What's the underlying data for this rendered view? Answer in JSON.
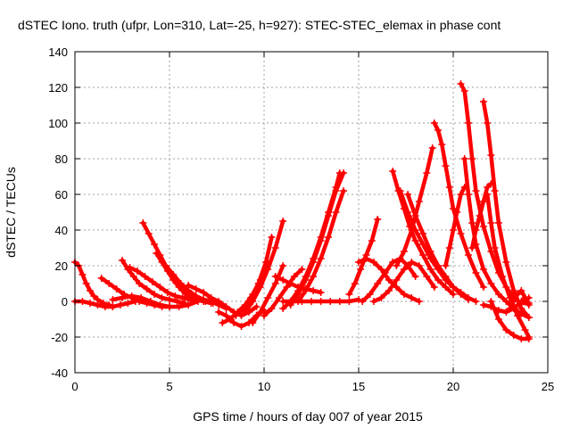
{
  "chart_data": {
    "type": "scatter",
    "title": "dSTEC Iono. truth (ufpr, Lon=310, Lat=-25, h=927): STEC-STEC_elemax in phase cont",
    "xlabel": "GPS time / hours of day 007 of year 2015",
    "ylabel": "dSTEC  / TECUs",
    "xlim": [
      0,
      25
    ],
    "ylim": [
      -40,
      140
    ],
    "xticks": [
      0,
      5,
      10,
      15,
      20,
      25
    ],
    "yticks": [
      -40,
      -20,
      0,
      20,
      40,
      60,
      80,
      100,
      120,
      140
    ],
    "grid": true,
    "marker": "+",
    "color": "#ff0000",
    "series": [
      {
        "x": [
          0.0,
          0.2,
          0.4,
          0.6,
          0.8,
          1.0,
          1.2,
          1.5,
          1.8,
          2.0
        ],
        "y": [
          22,
          20,
          15,
          10,
          6,
          3,
          1,
          -1,
          -2,
          -3
        ]
      },
      {
        "x": [
          0.0,
          0.4,
          0.8,
          1.2,
          1.6,
          2.0,
          2.4,
          2.8,
          3.2
        ],
        "y": [
          0,
          0,
          -1,
          -2,
          -3,
          -3,
          -2,
          -1,
          0
        ]
      },
      {
        "x": [
          1.4,
          1.8,
          2.2,
          2.6,
          3.0,
          3.4,
          3.8,
          4.2,
          4.6,
          5.0
        ],
        "y": [
          13,
          10,
          7,
          4,
          2,
          0,
          -1,
          -2,
          -3,
          -3
        ]
      },
      {
        "x": [
          2.5,
          2.8,
          3.1,
          3.4,
          3.8,
          4.2,
          4.6,
          5.0,
          5.4,
          5.8
        ],
        "y": [
          23,
          18,
          14,
          10,
          7,
          4,
          2,
          1,
          0,
          -1
        ]
      },
      {
        "x": [
          2.9,
          3.3,
          3.7,
          4.1,
          4.5,
          4.9,
          5.3,
          5.7,
          6.1,
          6.5
        ],
        "y": [
          19,
          17,
          14,
          11,
          8,
          5,
          3,
          2,
          1,
          0
        ]
      },
      {
        "x": [
          3.6,
          3.9,
          4.2,
          4.5,
          4.8,
          5.1,
          5.4,
          5.7,
          6.0,
          6.4,
          6.8,
          7.2
        ],
        "y": [
          44,
          38,
          32,
          26,
          20,
          15,
          10,
          6,
          3,
          1,
          0,
          -1
        ]
      },
      {
        "x": [
          4.3,
          4.6,
          4.9,
          5.2,
          5.5,
          5.8,
          6.1,
          6.5,
          6.9,
          7.3
        ],
        "y": [
          27,
          22,
          17,
          12,
          8,
          5,
          3,
          1,
          0,
          -1
        ]
      },
      {
        "x": [
          4.8,
          5.2,
          5.6,
          6.0,
          6.4,
          6.8,
          7.2,
          7.6,
          8.0
        ],
        "y": [
          20,
          15,
          10,
          6,
          3,
          1,
          0,
          -2,
          -4
        ]
      },
      {
        "x": [
          2.0,
          2.5,
          3.0,
          3.5,
          4.0,
          4.5,
          5.0,
          5.5,
          6.0,
          6.5
        ],
        "y": [
          1,
          2,
          3,
          2,
          0,
          -2,
          -3,
          -3,
          -2,
          0
        ]
      },
      {
        "x": [
          6.0,
          6.4,
          6.8,
          7.2,
          7.6,
          8.0,
          8.4,
          8.8,
          9.2,
          9.6
        ],
        "y": [
          9,
          7,
          5,
          2,
          0,
          -3,
          -6,
          -8,
          -6,
          -3
        ]
      },
      {
        "x": [
          7.6,
          8.0,
          8.4,
          8.8,
          9.2,
          9.6,
          10.0
        ],
        "y": [
          -6,
          -8,
          -12,
          -14,
          -12,
          -8,
          -5
        ]
      },
      {
        "x": [
          7.8,
          8.2,
          8.6,
          9.0,
          9.4,
          9.8,
          10.2
        ],
        "y": [
          -12,
          -10,
          -6,
          -2,
          4,
          12,
          22
        ]
      },
      {
        "x": [
          8.5,
          8.9,
          9.3,
          9.7,
          10.1,
          10.4
        ],
        "y": [
          -8,
          -4,
          2,
          10,
          22,
          36
        ]
      },
      {
        "x": [
          9.0,
          9.4,
          9.8,
          10.2,
          10.6,
          11.0
        ],
        "y": [
          -6,
          0,
          8,
          18,
          30,
          45
        ]
      },
      {
        "x": [
          9.4,
          9.8,
          10.2,
          10.6,
          11.0
        ],
        "y": [
          -12,
          -6,
          2,
          10,
          20
        ]
      },
      {
        "x": [
          10.0,
          10.4,
          10.8,
          11.2,
          11.6,
          12.0
        ],
        "y": [
          -8,
          -4,
          2,
          8,
          14,
          18
        ]
      },
      {
        "x": [
          10.6,
          11.0,
          11.4,
          11.8,
          12.2,
          12.6,
          13.0
        ],
        "y": [
          14,
          12,
          10,
          8,
          7,
          6,
          5
        ]
      },
      {
        "x": [
          11.0,
          11.4,
          11.8,
          12.2,
          12.6,
          13.0,
          13.4,
          13.8,
          14.0
        ],
        "y": [
          -4,
          0,
          6,
          14,
          24,
          36,
          50,
          64,
          72
        ]
      },
      {
        "x": [
          11.4,
          11.8,
          12.2,
          12.6,
          13.0,
          13.4,
          13.8,
          14.2
        ],
        "y": [
          -2,
          4,
          12,
          22,
          34,
          48,
          62,
          72
        ]
      },
      {
        "x": [
          11.8,
          12.2,
          12.6,
          13.0,
          13.4,
          13.8,
          14.2
        ],
        "y": [
          0,
          6,
          14,
          24,
          36,
          50,
          62
        ]
      },
      {
        "x": [
          11.0,
          11.5,
          12.0,
          12.5,
          13.0,
          13.5,
          14.0,
          14.5,
          15.0
        ],
        "y": [
          0,
          0,
          0,
          0,
          0,
          0,
          0,
          0,
          1
        ]
      },
      {
        "x": [
          14.5,
          14.8,
          15.1,
          15.4,
          15.7,
          16.0
        ],
        "y": [
          4,
          10,
          18,
          26,
          34,
          46
        ]
      },
      {
        "x": [
          15.0,
          15.4,
          15.8,
          16.2,
          16.6,
          17.0,
          17.4,
          17.8,
          18.2
        ],
        "y": [
          22,
          24,
          22,
          18,
          12,
          8,
          4,
          2,
          0
        ]
      },
      {
        "x": [
          15.2,
          15.6,
          16.0,
          16.4,
          16.8,
          17.2,
          17.6,
          18.0
        ],
        "y": [
          0,
          4,
          10,
          16,
          22,
          24,
          20,
          14
        ]
      },
      {
        "x": [
          15.8,
          16.2,
          16.6,
          17.0,
          17.4,
          17.8,
          18.2,
          18.6,
          19.0
        ],
        "y": [
          0,
          2,
          6,
          12,
          18,
          22,
          20,
          14,
          8
        ]
      },
      {
        "x": [
          16.8,
          17.1,
          17.4,
          17.7,
          18.0,
          18.4,
          18.8,
          19.2,
          19.6,
          20.0
        ],
        "y": [
          73,
          62,
          52,
          42,
          34,
          26,
          18,
          12,
          8,
          4
        ]
      },
      {
        "x": [
          17.0,
          17.4,
          17.8,
          18.2,
          18.6,
          18.9
        ],
        "y": [
          20,
          28,
          40,
          56,
          72,
          86
        ]
      },
      {
        "x": [
          17.2,
          17.6,
          18.0,
          18.4,
          18.8,
          19.2,
          19.6,
          20.0,
          20.4,
          20.8,
          21.2
        ],
        "y": [
          62,
          50,
          40,
          32,
          24,
          18,
          12,
          8,
          5,
          2,
          0
        ]
      },
      {
        "x": [
          17.6,
          18.0,
          18.4,
          18.8,
          19.2,
          19.6,
          20.0,
          20.4,
          20.8
        ],
        "y": [
          60,
          48,
          38,
          28,
          20,
          14,
          8,
          4,
          1
        ]
      },
      {
        "x": [
          19.0,
          19.2,
          19.4,
          19.6,
          19.8,
          20.0,
          20.4,
          20.8,
          21.2,
          21.6
        ],
        "y": [
          100,
          96,
          88,
          76,
          64,
          52,
          38,
          26,
          16,
          8
        ]
      },
      {
        "x": [
          19.6,
          19.8,
          20.0,
          20.2,
          20.4,
          20.6
        ],
        "y": [
          20,
          30,
          40,
          50,
          60,
          64
        ]
      },
      {
        "x": [
          20.4,
          20.6,
          20.8,
          21.0,
          21.2,
          21.6,
          22.0,
          22.4,
          22.8,
          23.2,
          23.6,
          24.0
        ],
        "y": [
          122,
          118,
          100,
          80,
          62,
          42,
          28,
          16,
          8,
          2,
          -1,
          -1
        ]
      },
      {
        "x": [
          20.6,
          20.8,
          21.0,
          21.2,
          21.6,
          22.0,
          22.4,
          22.8,
          23.2,
          23.6,
          24.0
        ],
        "y": [
          80,
          60,
          44,
          32,
          18,
          10,
          4,
          0,
          -4,
          -7,
          -9
        ]
      },
      {
        "x": [
          21.0,
          21.2,
          21.4,
          21.6,
          21.8,
          22.0
        ],
        "y": [
          30,
          40,
          48,
          56,
          64,
          66
        ]
      },
      {
        "x": [
          21.6,
          21.8,
          22.0,
          22.2,
          22.4,
          22.8,
          23.2,
          23.6,
          24.0
        ],
        "y": [
          112,
          100,
          82,
          62,
          44,
          22,
          6,
          -4,
          -9
        ]
      },
      {
        "x": [
          21.8,
          22.0,
          22.2,
          22.6,
          23.0,
          23.4,
          23.8,
          24.0
        ],
        "y": [
          60,
          44,
          30,
          14,
          2,
          -8,
          -16,
          -20
        ]
      },
      {
        "x": [
          22.0,
          22.4,
          22.8,
          23.2,
          23.6,
          24.0
        ],
        "y": [
          0,
          -10,
          -16,
          -19,
          -21,
          -21
        ]
      },
      {
        "x": [
          21.6,
          22.0,
          22.4,
          22.8,
          23.2,
          23.6,
          24.0
        ],
        "y": [
          -2,
          -3,
          -5,
          -6,
          -4,
          0,
          2
        ]
      },
      {
        "x": [
          23.0,
          23.2,
          23.4,
          23.6,
          23.8,
          24.0
        ],
        "y": [
          -4,
          0,
          4,
          6,
          2,
          -2
        ]
      }
    ]
  }
}
